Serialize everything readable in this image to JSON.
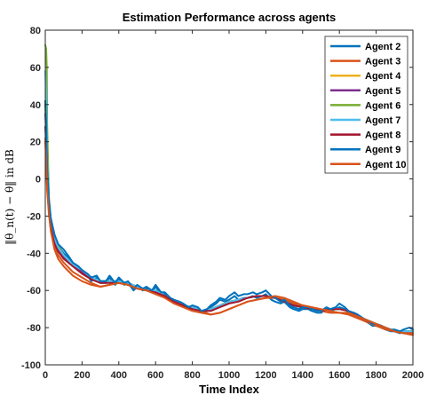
{
  "chart_data": {
    "type": "line",
    "title": "Estimation Performance across agents",
    "xlabel": "Time Index",
    "ylabel": "‖θ_n(t) − θ‖ in dB",
    "xlim": [
      0,
      2000
    ],
    "ylim": [
      -100,
      80
    ],
    "xticks": [
      0,
      200,
      400,
      600,
      800,
      1000,
      1200,
      1400,
      1600,
      1800,
      2000
    ],
    "yticks": [
      -100,
      -80,
      -60,
      -40,
      -20,
      0,
      20,
      40,
      60,
      80
    ],
    "grid": false,
    "legend_position": "top-right",
    "series": [
      {
        "name": "Agent 2",
        "color": "#0072BD",
        "x": [
          0,
          5,
          10,
          20,
          30,
          50,
          70,
          100,
          130,
          150,
          180,
          200,
          230,
          250,
          280,
          300,
          330,
          350,
          380,
          400,
          430,
          450,
          480,
          500,
          530,
          550,
          580,
          600,
          630,
          650,
          680,
          700,
          730,
          750,
          780,
          800,
          830,
          850,
          880,
          900,
          930,
          950,
          980,
          1000,
          1030,
          1050,
          1080,
          1100,
          1130,
          1150,
          1180,
          1200,
          1230,
          1250,
          1280,
          1300,
          1330,
          1350,
          1380,
          1400,
          1430,
          1450,
          1480,
          1500,
          1530,
          1550,
          1580,
          1600,
          1630,
          1650,
          1680,
          1700,
          1730,
          1750,
          1780,
          1800,
          1830,
          1850,
          1880,
          1900,
          1930,
          1950,
          1980,
          2000
        ],
        "y": [
          40,
          28,
          5,
          -12,
          -22,
          -30,
          -36,
          -40,
          -43,
          -46,
          -48,
          -50,
          -52,
          -55,
          -53,
          -56,
          -56,
          -53,
          -57,
          -54,
          -57,
          -56,
          -60,
          -58,
          -60,
          -59,
          -61,
          -58,
          -62,
          -62,
          -65,
          -66,
          -67,
          -68,
          -70,
          -69,
          -70,
          -72,
          -71,
          -69,
          -67,
          -65,
          -66,
          -65,
          -63,
          -65,
          -64,
          -64,
          -63,
          -64,
          -63,
          -62,
          -65,
          -66,
          -67,
          -66,
          -69,
          -70,
          -71,
          -70,
          -70,
          -71,
          -72,
          -72,
          -70,
          -71,
          -70,
          -69,
          -70,
          -72,
          -73,
          -74,
          -76,
          -77,
          -79,
          -79,
          -80,
          -81,
          -82,
          -82,
          -83,
          -82,
          -82,
          -82
        ]
      },
      {
        "name": "Agent 3",
        "color": "#D95319",
        "x": [
          0,
          5,
          10,
          20,
          30,
          50,
          70,
          100,
          150,
          200,
          250,
          300,
          350,
          400,
          450,
          500,
          550,
          600,
          650,
          700,
          750,
          800,
          850,
          900,
          950,
          1000,
          1050,
          1100,
          1150,
          1200,
          1250,
          1300,
          1350,
          1400,
          1450,
          1500,
          1550,
          1600,
          1650,
          1700,
          1750,
          1800,
          1850,
          1900,
          1950,
          2000
        ],
        "y": [
          22,
          12,
          -5,
          -18,
          -27,
          -37,
          -41,
          -45,
          -50,
          -53,
          -56,
          -58,
          -57,
          -56,
          -57,
          -59,
          -60,
          -61,
          -63,
          -66,
          -68,
          -70,
          -71,
          -73,
          -72,
          -70,
          -68,
          -66,
          -65,
          -64,
          -64,
          -65,
          -67,
          -68,
          -69,
          -71,
          -72,
          -72,
          -73,
          -75,
          -77,
          -79,
          -81,
          -82,
          -83,
          -84
        ]
      },
      {
        "name": "Agent 4",
        "color": "#EDB120",
        "x": [
          0,
          5,
          10,
          20,
          30,
          50,
          70,
          100,
          150,
          200,
          250,
          300,
          350,
          400,
          450,
          500,
          550,
          600,
          650,
          700,
          750,
          800,
          850,
          900,
          950,
          1000,
          1050,
          1100,
          1150,
          1200,
          1250,
          1300,
          1350,
          1400,
          1450,
          1500,
          1550,
          1600,
          1650,
          1700,
          1750,
          1800,
          1850,
          1900,
          1950,
          2000
        ],
        "y": [
          38,
          25,
          3,
          -14,
          -24,
          -32,
          -37,
          -42,
          -46,
          -49,
          -53,
          -55,
          -55,
          -55,
          -56,
          -58,
          -60,
          -60,
          -63,
          -65,
          -68,
          -69,
          -71,
          -70,
          -68,
          -66,
          -65,
          -64,
          -63,
          -63,
          -64,
          -66,
          -68,
          -69,
          -70,
          -71,
          -70,
          -70,
          -71,
          -74,
          -76,
          -78,
          -80,
          -82,
          -82,
          -82
        ]
      },
      {
        "name": "Agent 5",
        "color": "#7E2F8E",
        "x": [
          0,
          5,
          10,
          20,
          30,
          50,
          70,
          100,
          150,
          200,
          250,
          300,
          350,
          400,
          450,
          500,
          550,
          600,
          650,
          700,
          750,
          800,
          850,
          900,
          950,
          1000,
          1050,
          1100,
          1150,
          1200,
          1250,
          1300,
          1350,
          1400,
          1450,
          1500,
          1550,
          1600,
          1650,
          1700,
          1750,
          1800,
          1850,
          1900,
          1950,
          2000
        ],
        "y": [
          35,
          24,
          2,
          -15,
          -25,
          -33,
          -38,
          -42,
          -46,
          -50,
          -53,
          -55,
          -55,
          -55,
          -56,
          -58,
          -60,
          -60,
          -63,
          -65,
          -68,
          -69,
          -71,
          -70,
          -68,
          -66,
          -65,
          -64,
          -63,
          -63,
          -64,
          -66,
          -68,
          -69,
          -70,
          -71,
          -70,
          -70,
          -71,
          -74,
          -76,
          -78,
          -80,
          -82,
          -82,
          -82
        ]
      },
      {
        "name": "Agent 6",
        "color": "#77AC30",
        "x": [
          0,
          5,
          8,
          10,
          20,
          30,
          50,
          70,
          100,
          150,
          200,
          250,
          300,
          350,
          400,
          450,
          500,
          550,
          600,
          650,
          700,
          750,
          800,
          850,
          900,
          950,
          1000,
          1050,
          1100,
          1150,
          1200,
          1250,
          1300,
          1350,
          1400,
          1450,
          1500,
          1550,
          1600,
          1650,
          1700,
          1750,
          1800,
          1850,
          1900,
          1950,
          2000
        ],
        "y": [
          72,
          70,
          60,
          30,
          -10,
          -22,
          -31,
          -36,
          -41,
          -46,
          -49,
          -53,
          -55,
          -55,
          -55,
          -56,
          -58,
          -60,
          -60,
          -63,
          -65,
          -68,
          -69,
          -71,
          -70,
          -68,
          -66,
          -65,
          -64,
          -63,
          -63,
          -64,
          -66,
          -68,
          -69,
          -70,
          -71,
          -70,
          -70,
          -71,
          -74,
          -76,
          -78,
          -80,
          -82,
          -82,
          -82
        ]
      },
      {
        "name": "Agent 7",
        "color": "#4DBEEE",
        "x": [
          0,
          5,
          10,
          20,
          30,
          50,
          70,
          100,
          150,
          200,
          250,
          300,
          350,
          400,
          450,
          500,
          550,
          600,
          650,
          700,
          750,
          800,
          850,
          900,
          950,
          1000,
          1050,
          1100,
          1150,
          1200,
          1250,
          1300,
          1350,
          1400,
          1450,
          1500,
          1550,
          1600,
          1650,
          1700,
          1750,
          1800,
          1850,
          1900,
          1950,
          2000
        ],
        "y": [
          58,
          45,
          12,
          -12,
          -23,
          -32,
          -37,
          -41,
          -46,
          -49,
          -53,
          -55,
          -55,
          -55,
          -56,
          -58,
          -60,
          -60,
          -63,
          -65,
          -68,
          -69,
          -71,
          -70,
          -68,
          -66,
          -65,
          -64,
          -63,
          -63,
          -64,
          -66,
          -68,
          -69,
          -70,
          -71,
          -70,
          -70,
          -71,
          -74,
          -76,
          -78,
          -80,
          -82,
          -82,
          -82
        ]
      },
      {
        "name": "Agent 8",
        "color": "#A2142F",
        "x": [
          0,
          5,
          10,
          20,
          30,
          50,
          70,
          100,
          150,
          200,
          250,
          300,
          350,
          400,
          450,
          500,
          550,
          600,
          650,
          700,
          750,
          800,
          850,
          900,
          950,
          1000,
          1050,
          1100,
          1150,
          1200,
          1250,
          1300,
          1350,
          1400,
          1450,
          1500,
          1550,
          1600,
          1650,
          1700,
          1750,
          1800,
          1850,
          1900,
          1950,
          2000
        ],
        "y": [
          28,
          18,
          -2,
          -16,
          -26,
          -35,
          -39,
          -43,
          -47,
          -51,
          -54,
          -56,
          -56,
          -56,
          -57,
          -59,
          -60,
          -61,
          -63,
          -66,
          -68,
          -70,
          -71,
          -71,
          -69,
          -67,
          -66,
          -64,
          -63,
          -63,
          -64,
          -66,
          -68,
          -69,
          -70,
          -71,
          -70,
          -70,
          -71,
          -74,
          -76,
          -78,
          -80,
          -82,
          -83,
          -83
        ]
      },
      {
        "name": "Agent 9",
        "color": "#0072BD",
        "x": [
          0,
          5,
          10,
          20,
          30,
          50,
          70,
          100,
          130,
          150,
          180,
          200,
          230,
          250,
          280,
          300,
          330,
          350,
          380,
          400,
          430,
          450,
          480,
          500,
          530,
          550,
          580,
          600,
          630,
          650,
          680,
          700,
          730,
          750,
          780,
          800,
          830,
          850,
          880,
          900,
          930,
          950,
          980,
          1000,
          1030,
          1050,
          1080,
          1100,
          1130,
          1150,
          1180,
          1200,
          1230,
          1250,
          1280,
          1300,
          1330,
          1350,
          1380,
          1400,
          1430,
          1450,
          1480,
          1500,
          1530,
          1550,
          1580,
          1600,
          1630,
          1650,
          1680,
          1700,
          1730,
          1750,
          1780,
          1800,
          1830,
          1850,
          1880,
          1900,
          1930,
          1950,
          1980,
          2000
        ],
        "y": [
          42,
          30,
          6,
          -11,
          -21,
          -30,
          -35,
          -38,
          -42,
          -45,
          -47,
          -49,
          -51,
          -53,
          -52,
          -55,
          -55,
          -52,
          -56,
          -53,
          -56,
          -55,
          -59,
          -57,
          -59,
          -58,
          -60,
          -57,
          -61,
          -61,
          -64,
          -65,
          -66,
          -67,
          -69,
          -68,
          -69,
          -71,
          -70,
          -68,
          -66,
          -64,
          -65,
          -63,
          -61,
          -63,
          -62,
          -62,
          -61,
          -62,
          -61,
          -60,
          -63,
          -64,
          -66,
          -65,
          -68,
          -69,
          -70,
          -69,
          -69,
          -70,
          -71,
          -71,
          -69,
          -70,
          -69,
          -67,
          -69,
          -71,
          -72,
          -73,
          -75,
          -76,
          -78,
          -78,
          -79,
          -80,
          -81,
          -81,
          -82,
          -81,
          -80,
          -81
        ]
      },
      {
        "name": "Agent 10",
        "color": "#D95319",
        "x": [
          0,
          5,
          10,
          20,
          30,
          50,
          70,
          100,
          150,
          200,
          250,
          300,
          350,
          400,
          450,
          500,
          550,
          600,
          650,
          700,
          750,
          800,
          850,
          900,
          950,
          1000,
          1050,
          1100,
          1150,
          1200,
          1250,
          1300,
          1350,
          1400,
          1450,
          1500,
          1550,
          1600,
          1650,
          1700,
          1750,
          1800,
          1850,
          1900,
          1950,
          2000
        ],
        "y": [
          20,
          10,
          -6,
          -19,
          -28,
          -38,
          -43,
          -47,
          -52,
          -55,
          -57,
          -58,
          -57,
          -56,
          -57,
          -59,
          -60,
          -62,
          -64,
          -67,
          -69,
          -71,
          -72,
          -73,
          -72,
          -70,
          -68,
          -66,
          -65,
          -64,
          -63,
          -64,
          -66,
          -68,
          -69,
          -70,
          -71,
          -72,
          -72,
          -74,
          -76,
          -78,
          -80,
          -82,
          -83,
          -83
        ]
      }
    ]
  }
}
